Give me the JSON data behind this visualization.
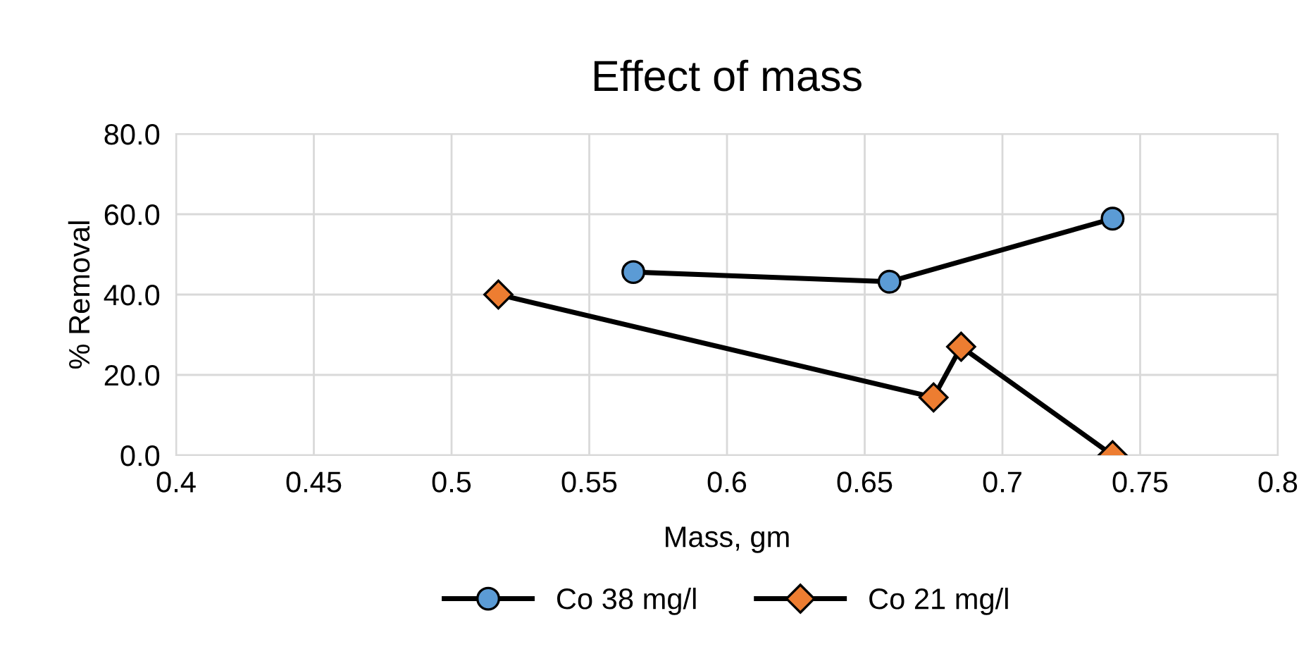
{
  "chart_data": {
    "type": "line",
    "title": "Effect of mass",
    "xlabel": "Mass, gm",
    "ylabel": "% Removal",
    "series": [
      {
        "name": "Co 38 mg/l",
        "color": "#5b9bd5",
        "marker": "circle",
        "x": [
          0.566,
          0.659,
          0.74
        ],
        "values": [
          45.6,
          43.2,
          58.9
        ]
      },
      {
        "name": "Co 21 mg/l",
        "color": "#ed7d31",
        "marker": "diamond",
        "x": [
          0.517,
          0.675,
          0.685,
          0.74
        ],
        "values": [
          40.0,
          14.4,
          27.0,
          0.0
        ]
      }
    ],
    "xlim": [
      0.4,
      0.8
    ],
    "xticks": [
      0.4,
      0.45,
      0.5,
      0.55,
      0.6,
      0.65,
      0.7,
      0.75,
      0.8
    ],
    "ylim": [
      0,
      80
    ],
    "yticks": [
      {
        "value": 0,
        "label": "0.0"
      },
      {
        "value": 20,
        "label": "20.0"
      },
      {
        "value": 40,
        "label": "40.0"
      },
      {
        "value": 60,
        "label": "60.0"
      },
      {
        "value": 80,
        "label": "80.0"
      }
    ],
    "grid": true,
    "legend": "bottom",
    "line_style": "solid"
  }
}
